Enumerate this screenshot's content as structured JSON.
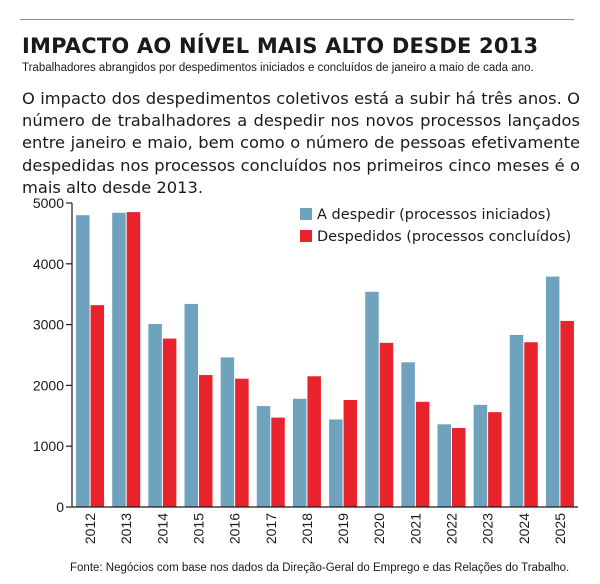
{
  "header": {
    "title": "IMPACTO AO NÍVEL MAIS ALTO DESDE 2013",
    "subtitle": "Trabalhadores abrangidos por despedimentos iniciados e concluídos de janeiro a maio de cada ano."
  },
  "body_text": "O impacto dos despedimentos coletivos está a subir há três anos. O número de trabalhadores a despedir nos novos processos lançados entre janeiro e maio, bem como o número de pessoas efetivamente despedidas nos processos concluídos nos primeiros cinco meses é o mais alto desde 2013.",
  "source": "Fonte: Negócios com base nos dados da Direção-Geral do Emprego e das Relações do Trabalho.",
  "colors": {
    "series_blue": "#6fa3bd",
    "series_red": "#e8232b",
    "axis": "#1a1a1a",
    "rule": "#8c8c8c"
  },
  "chart_data": {
    "type": "bar",
    "categories": [
      "2012",
      "2013",
      "2014",
      "2015",
      "2016",
      "2017",
      "2018",
      "2019",
      "2020",
      "2021",
      "2022",
      "2023",
      "2024",
      "2025"
    ],
    "series": [
      {
        "name": "A despedir (processos iniciados)",
        "color": "#6fa3bd",
        "values": [
          4800,
          4840,
          3010,
          3340,
          2460,
          1660,
          1780,
          1440,
          3540,
          2380,
          1360,
          1680,
          2830,
          3790
        ]
      },
      {
        "name": "Despedidos (processos concluídos)",
        "color": "#e8232b",
        "values": [
          3320,
          4850,
          2770,
          2170,
          2110,
          1470,
          2150,
          1760,
          2700,
          1730,
          1300,
          1560,
          2710,
          3060
        ]
      }
    ],
    "y_ticks": [
      "0",
      "1000",
      "2000",
      "3000",
      "4000",
      "5000"
    ],
    "ylim": [
      0,
      5000
    ],
    "grid": false,
    "legend_position": "top-right"
  }
}
